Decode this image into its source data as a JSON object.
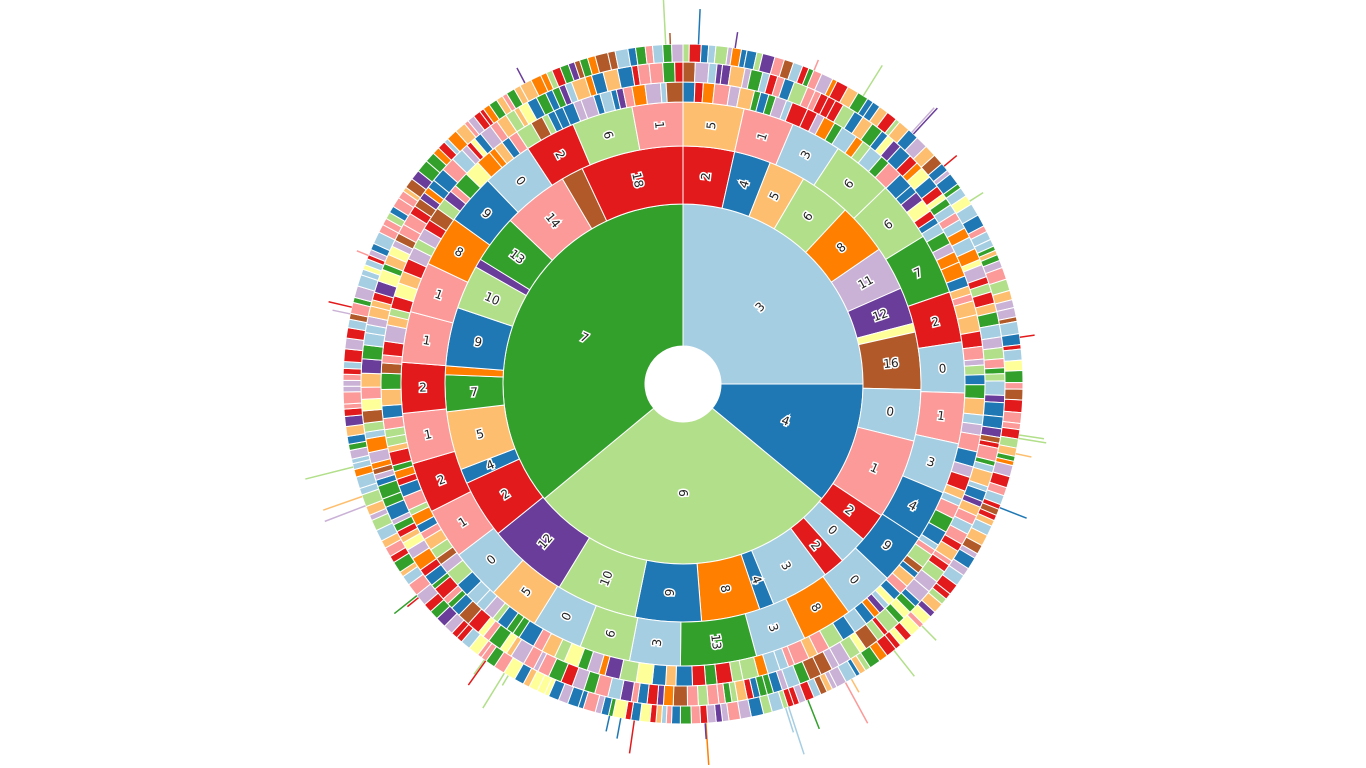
{
  "palette": {
    "0": "#a6cee3",
    "1": "#fb9a99",
    "2": "#e31a1c",
    "3": "#a6cee3",
    "4": "#1f78b4",
    "5": "#fdbf6f",
    "6": "#b2df8a",
    "7": "#33a02c",
    "8": "#ff7f00",
    "9": "#1f78b4",
    "10": "#b2df8a",
    "11": "#cab2d6",
    "12": "#6a3d9a",
    "13": "#33a02c",
    "14": "#fb9a99",
    "15": "#ffff99",
    "16": "#b15928",
    "17": "#fdbf6f",
    "18": "#e31a1c",
    "19": "#cab2d6"
  },
  "chart_data": {
    "type": "sunburst",
    "title": "",
    "decorative_outer_rings": 3,
    "rings": [
      [
        {
          "label": "3",
          "value": 25
        },
        {
          "label": "4",
          "value": 11
        },
        {
          "label": "6",
          "value": 28
        },
        {
          "label": "7",
          "value": 36
        }
      ],
      [
        {
          "label": "2",
          "value": 3.5,
          "parent": "3"
        },
        {
          "label": "4",
          "value": 2.5,
          "parent": "3"
        },
        {
          "label": "5",
          "value": 2.5,
          "parent": "3"
        },
        {
          "label": "6",
          "value": 3.5,
          "parent": "3"
        },
        {
          "label": "8",
          "value": 3.5,
          "parent": "3"
        },
        {
          "label": "11",
          "value": 3.0,
          "parent": "3"
        },
        {
          "label": "12",
          "value": 2.5,
          "parent": "3"
        },
        {
          "label": "",
          "value": 0.6,
          "parent": "3",
          "color": "#ffff99"
        },
        {
          "label": "16",
          "value": 3.9,
          "parent": "3"
        },
        {
          "label": "0",
          "value": 3.5,
          "parent": "4"
        },
        {
          "label": "1",
          "value": 5.5,
          "parent": "4"
        },
        {
          "label": "2",
          "value": 2.0,
          "parent": "4"
        },
        {
          "label": "0",
          "value": 2.0,
          "parent": "6"
        },
        {
          "label": "2",
          "value": 1.5,
          "parent": "6"
        },
        {
          "label": "3",
          "value": 4.0,
          "parent": "6"
        },
        {
          "label": "4",
          "value": 1.0,
          "parent": "6"
        },
        {
          "label": "8",
          "value": 4.0,
          "parent": "6"
        },
        {
          "label": "9",
          "value": 4.5,
          "parent": "6"
        },
        {
          "label": "10",
          "value": 5.5,
          "parent": "6"
        },
        {
          "label": "12",
          "value": 5.5,
          "parent": "6"
        },
        {
          "label": "2",
          "value": 4.0,
          "parent": "7"
        },
        {
          "label": "4",
          "value": 1.0,
          "parent": "7"
        },
        {
          "label": "5",
          "value": 4.0,
          "parent": "7"
        },
        {
          "label": "7",
          "value": 2.5,
          "parent": "7"
        },
        {
          "label": "",
          "value": 0.6,
          "parent": "7",
          "color": "#ff7f00"
        },
        {
          "label": "9",
          "value": 4.0,
          "parent": "7"
        },
        {
          "label": "10",
          "value": 3.0,
          "parent": "7"
        },
        {
          "label": "",
          "value": 0.6,
          "parent": "7",
          "color": "#6a3d9a"
        },
        {
          "label": "13",
          "value": 3.3,
          "parent": "7"
        },
        {
          "label": "14",
          "value": 4.5,
          "parent": "7"
        },
        {
          "label": "",
          "value": 1.5,
          "parent": "7",
          "color": "#b15928"
        },
        {
          "label": "18",
          "value": 7.0,
          "parent": "7"
        }
      ],
      [
        {
          "label": "5",
          "value": 1.2
        },
        {
          "label": "1",
          "value": 1.0
        },
        {
          "label": "3",
          "value": 1.0
        },
        {
          "label": "6",
          "value": 1.2
        },
        {
          "label": "6",
          "value": 1.2
        },
        {
          "label": "7",
          "value": 1.2
        },
        {
          "label": "2",
          "value": 1.0
        },
        {
          "label": "0",
          "value": 1.0
        },
        {
          "label": "1",
          "value": 1.0
        },
        {
          "label": "3",
          "value": 1.0
        },
        {
          "label": "4",
          "value": 1.0
        },
        {
          "label": "9",
          "value": 1.0
        },
        {
          "label": "0",
          "value": 1.0
        },
        {
          "label": "8",
          "value": 1.0
        },
        {
          "label": "3",
          "value": 1.0
        },
        {
          "label": "13",
          "value": 1.5
        },
        {
          "label": "3",
          "value": 1.0
        },
        {
          "label": "6",
          "value": 1.0
        },
        {
          "label": "0",
          "value": 1.0
        },
        {
          "label": "5",
          "value": 1.0
        },
        {
          "label": "0",
          "value": 1.0
        },
        {
          "label": "1",
          "value": 1.0
        },
        {
          "label": "2",
          "value": 1.0
        },
        {
          "label": "1",
          "value": 1.0
        },
        {
          "label": "2",
          "value": 1.0
        },
        {
          "label": "1",
          "value": 1.0
        },
        {
          "label": "1",
          "value": 1.0
        },
        {
          "label": "8",
          "value": 1.0
        },
        {
          "label": "9",
          "value": 1.0
        },
        {
          "label": "0",
          "value": 1.0
        },
        {
          "label": "2",
          "value": 1.0
        },
        {
          "label": "6",
          "value": 1.2
        },
        {
          "label": "1",
          "value": 1.0
        }
      ]
    ]
  }
}
